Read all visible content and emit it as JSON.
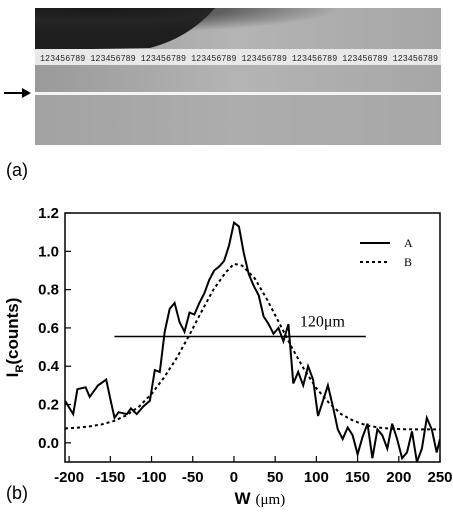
{
  "panel_a": {
    "label": "(a)",
    "scale_text": "123456789 123456789 123456789 123456789 123456789 123456789 123456789 123456789"
  },
  "panel_b": {
    "label": "(b)"
  },
  "chart_data": {
    "type": "line",
    "title": "",
    "xlabel": "W",
    "xlabel_unit": "(μm)",
    "ylabel": "I",
    "ylabel_sub": "R",
    "ylabel_unit": "(counts)",
    "xlim": [
      -205,
      250
    ],
    "ylim": [
      -0.1,
      1.2
    ],
    "xticks": [
      -200,
      -150,
      -100,
      -50,
      0,
      50,
      100,
      150,
      200,
      250
    ],
    "yticks": [
      0.0,
      0.2,
      0.4,
      0.6,
      0.8,
      1.0,
      1.2
    ],
    "xtick_labels": [
      "-200",
      "-150",
      "-100",
      "-50",
      "0",
      "50",
      "100",
      "150",
      "200",
      "250"
    ],
    "ytick_labels": [
      "0.0",
      "0.2",
      "0.4",
      "0.6",
      "0.8",
      "1.0",
      "1.2"
    ],
    "grid": false,
    "legend_position": "top-right",
    "annotation": {
      "text": "120μm",
      "y": 0.555,
      "x_start": -145,
      "x_end": 160
    },
    "series": [
      {
        "name": "A",
        "style": "solid",
        "x": [
          -205,
          -195,
          -190,
          -180,
          -175,
          -165,
          -155,
          -150,
          -145,
          -140,
          -130,
          -125,
          -118,
          -110,
          -102,
          -96,
          -90,
          -84,
          -78,
          -72,
          -66,
          -60,
          -54,
          -48,
          -42,
          -36,
          -30,
          -24,
          -18,
          -12,
          -6,
          0,
          6,
          12,
          18,
          24,
          30,
          36,
          42,
          48,
          54,
          60,
          66,
          72,
          78,
          84,
          90,
          96,
          102,
          108,
          114,
          120,
          126,
          132,
          138,
          144,
          150,
          156,
          162,
          168,
          174,
          180,
          186,
          192,
          198,
          204,
          210,
          216,
          222,
          228,
          234,
          240,
          246,
          250
        ],
        "y": [
          0.22,
          0.15,
          0.28,
          0.29,
          0.24,
          0.3,
          0.33,
          0.23,
          0.13,
          0.16,
          0.15,
          0.18,
          0.15,
          0.19,
          0.22,
          0.38,
          0.37,
          0.58,
          0.7,
          0.73,
          0.63,
          0.58,
          0.68,
          0.67,
          0.73,
          0.78,
          0.85,
          0.9,
          0.92,
          0.95,
          1.03,
          1.15,
          1.13,
          0.99,
          0.88,
          0.82,
          0.77,
          0.66,
          0.62,
          0.57,
          0.6,
          0.53,
          0.62,
          0.31,
          0.37,
          0.3,
          0.4,
          0.33,
          0.14,
          0.22,
          0.3,
          0.19,
          0.07,
          0.02,
          0.08,
          0.04,
          -0.06,
          0.03,
          0.1,
          -0.08,
          0.07,
          0.04,
          -0.03,
          0.1,
          0.02,
          -0.08,
          -0.05,
          0.06,
          -0.1,
          -0.03,
          0.13,
          0.07,
          -0.05,
          0.02
        ]
      },
      {
        "name": "B",
        "style": "dotted",
        "x": [
          -205,
          -190,
          -175,
          -160,
          -145,
          -130,
          -115,
          -100,
          -85,
          -70,
          -55,
          -40,
          -25,
          -10,
          0,
          10,
          25,
          40,
          55,
          70,
          85,
          100,
          115,
          130,
          145,
          160,
          175,
          190,
          205,
          220,
          235,
          250
        ],
        "y": [
          0.075,
          0.079,
          0.086,
          0.097,
          0.115,
          0.145,
          0.19,
          0.255,
          0.34,
          0.44,
          0.555,
          0.68,
          0.8,
          0.89,
          0.935,
          0.925,
          0.86,
          0.75,
          0.625,
          0.5,
          0.385,
          0.285,
          0.21,
          0.15,
          0.115,
          0.092,
          0.08,
          0.074,
          0.071,
          0.07,
          0.07,
          0.07
        ]
      }
    ]
  }
}
